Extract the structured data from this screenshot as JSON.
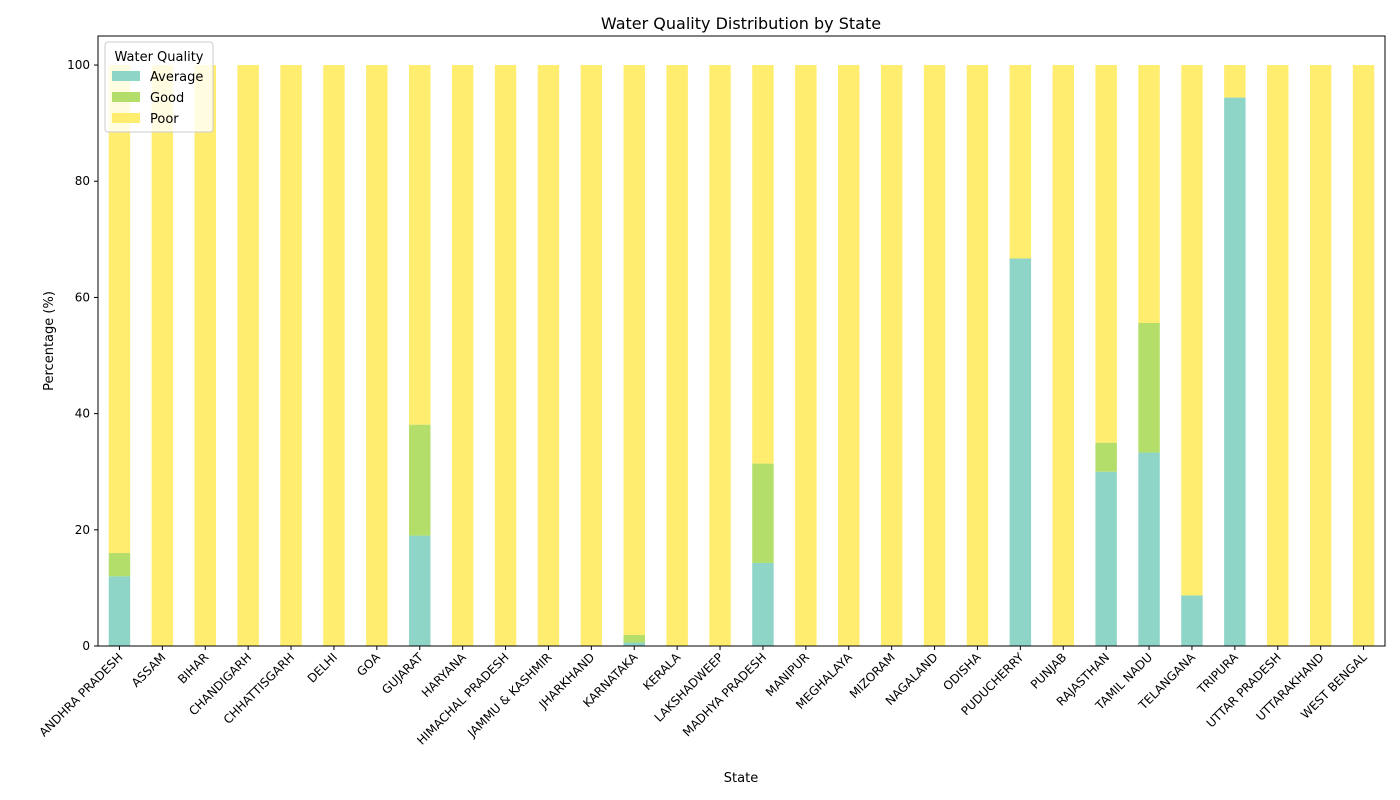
{
  "chart_data": {
    "type": "bar",
    "stacked": true,
    "title": "Water Quality Distribution by State",
    "xlabel": "State",
    "ylabel": "Percentage (%)",
    "ylim": [
      0,
      105
    ],
    "yticks": [
      0,
      20,
      40,
      60,
      80,
      100
    ],
    "grid": false,
    "legend": {
      "title": "Water Quality",
      "placement": "top-left"
    },
    "categories": [
      "ANDHRA PRADESH",
      "ASSAM",
      "BIHAR",
      "CHANDIGARH",
      "CHHATTISGARH",
      "DELHI",
      "GOA",
      "GUJARAT",
      "HARYANA",
      "HIMACHAL PRADESH",
      "JAMMU & KASHMIR",
      "JHARKHAND",
      "KARNATAKA",
      "KERALA",
      "LAKSHADWEEP",
      "MADHYA PRADESH",
      "MANIPUR",
      "MEGHALAYA",
      "MIZORAM",
      "NAGALAND",
      "ODISHA",
      "PUDUCHERRY",
      "PUNJAB",
      "RAJASTHAN",
      "TAMIL NADU",
      "TELANGANA",
      "TRIPURA",
      "UTTAR PRADESH",
      "UTTARAKHAND",
      "WEST BENGAL"
    ],
    "series": [
      {
        "name": "Average",
        "color": "#8ed5c8",
        "values": [
          12,
          0,
          0,
          0,
          0,
          0,
          0,
          19,
          0,
          0,
          0,
          0,
          0.6,
          0,
          0,
          14.3,
          0,
          0,
          0,
          0,
          0,
          66.7,
          0,
          30,
          33.3,
          8.7,
          94.4,
          0,
          0,
          0
        ]
      },
      {
        "name": "Good",
        "color": "#b3de69",
        "values": [
          4,
          0,
          0,
          0,
          0,
          0,
          0,
          19.1,
          0,
          0,
          0,
          0,
          1.3,
          0,
          0,
          17.1,
          0,
          0,
          0,
          0,
          0,
          0,
          0,
          5,
          22.3,
          0,
          0,
          0,
          0,
          0
        ]
      },
      {
        "name": "Poor",
        "color": "#ffed6f",
        "values": [
          84,
          100,
          100,
          100,
          100,
          100,
          100,
          61.9,
          100,
          100,
          100,
          100,
          98.1,
          100,
          100,
          68.6,
          100,
          100,
          100,
          100,
          100,
          33.3,
          100,
          65,
          44.4,
          91.3,
          5.6,
          100,
          100,
          100
        ]
      }
    ]
  }
}
